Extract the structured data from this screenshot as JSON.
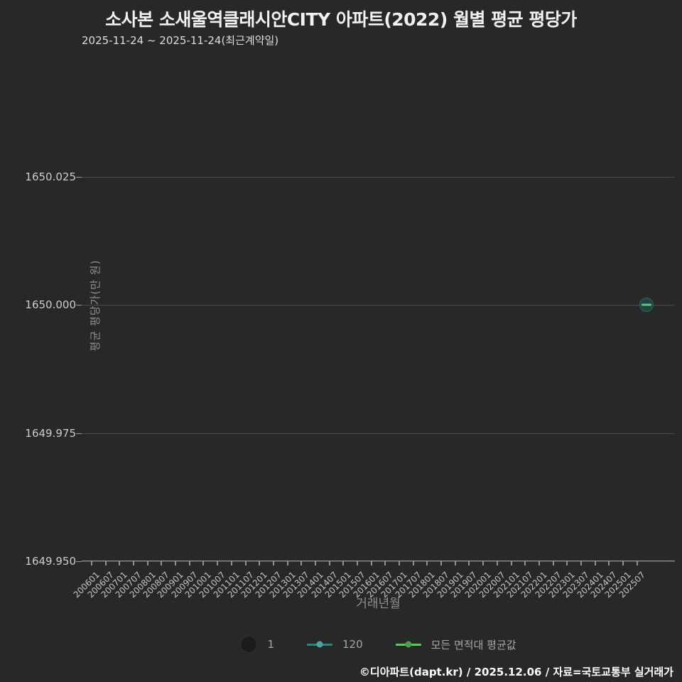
{
  "title": "소사본 소새울역클래시안CITY 아파트(2022) 월별 평균 평당가",
  "subtitle": "2025-11-24 ~ 2025-11-24(최근계약일)",
  "footer": "©디아파트(dapt.kr) / 2025.12.06 / 자료=국토교통부 실거래가",
  "colors": {
    "background": "#282828",
    "gridline": "#4d4d4d",
    "axis": "#8f8f8f",
    "teal_series": "#377e7e",
    "teal_dot": "#4da5a5",
    "green_series": "#62c462",
    "green_dot": "#4d9e4f",
    "point_fill": "#1e4641",
    "point_avg_bar": "#6abf84",
    "size_legend_dot": "#1b1b1b"
  },
  "chart_data": {
    "type": "scatter",
    "title": "소사본 소새울역클래시안CITY 아파트(2022) 월별 평균 평당가",
    "subtitle": "2025-11-24 ~ 2025-11-24(최근계약일)",
    "xlabel": "거래년월",
    "ylabel": "평균 평당가(만 원)",
    "grid": true,
    "legend_position": "bottom",
    "ylim": [
      1649.95,
      1650.047
    ],
    "y_ticks": [
      {
        "label": "1650.025",
        "value": 1650.025
      },
      {
        "label": "1650.000",
        "value": 1650.0
      },
      {
        "label": "1649.975",
        "value": 1649.975
      },
      {
        "label": "1649.950",
        "value": 1649.95
      }
    ],
    "x_ticks": [
      "200601",
      "200607",
      "200701",
      "200707",
      "200801",
      "200807",
      "200901",
      "200907",
      "201001",
      "201007",
      "201101",
      "201107",
      "201201",
      "201207",
      "201301",
      "201307",
      "201401",
      "201407",
      "201501",
      "201507",
      "201601",
      "201607",
      "201701",
      "201707",
      "201801",
      "201807",
      "201901",
      "201907",
      "202001",
      "202007",
      "202101",
      "202107",
      "202201",
      "202207",
      "202301",
      "202307",
      "202401",
      "202407",
      "202501",
      "202507"
    ],
    "series": [
      {
        "name": "120",
        "color": "#377e7e",
        "points": [
          {
            "x": "202511",
            "y": 1650.0,
            "count": 1
          }
        ]
      },
      {
        "name": "모든 면적대 평균값",
        "color": "#62c462",
        "points": [
          {
            "x": "202511",
            "y": 1650.0
          }
        ]
      }
    ],
    "legend": [
      {
        "label": "1",
        "kind": "size-dot"
      },
      {
        "label": "120",
        "kind": "line-dot"
      },
      {
        "label": "모든 면적대 평균값",
        "kind": "line-dot"
      }
    ]
  }
}
